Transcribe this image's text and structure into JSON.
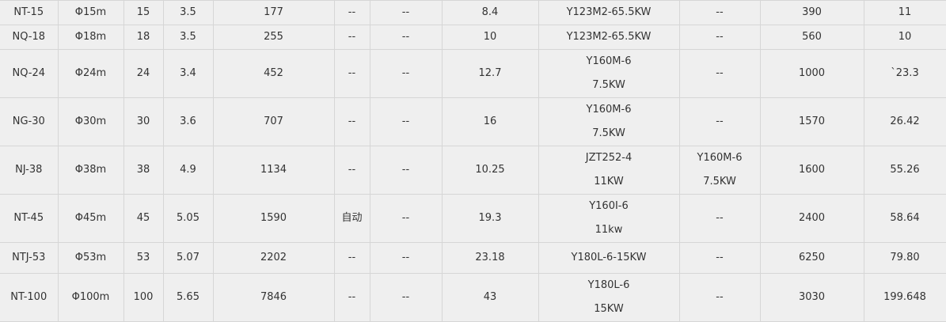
{
  "table": {
    "rows": [
      [
        "NT-15",
        "Φ15m",
        "15",
        "3.5",
        "177",
        "--",
        "--",
        "8.4",
        [
          "Y123M2-65.5KW"
        ],
        [
          "--"
        ],
        "390",
        "11"
      ],
      [
        "NQ-18",
        "Φ18m",
        "18",
        "3.5",
        "255",
        "--",
        "--",
        "10",
        [
          "Y123M2-65.5KW"
        ],
        [
          "--"
        ],
        "560",
        "10"
      ],
      [
        "NQ-24",
        "Φ24m",
        "24",
        "3.4",
        "452",
        "--",
        "--",
        "12.7",
        [
          "Y160M-6",
          "7.5KW"
        ],
        [
          "--"
        ],
        "1000",
        "`23.3"
      ],
      [
        "NG-30",
        "Φ30m",
        "30",
        "3.6",
        "707",
        "--",
        "--",
        "16",
        [
          "Y160M-6",
          "7.5KW"
        ],
        [
          "--"
        ],
        "1570",
        "26.42"
      ],
      [
        "NJ-38",
        "Φ38m",
        "38",
        "4.9",
        "1134",
        "--",
        "--",
        "10.25",
        [
          "JZT252-4",
          "11KW"
        ],
        [
          "Y160M-6",
          "7.5KW"
        ],
        "1600",
        "55.26"
      ],
      [
        "NT-45",
        "Φ45m",
        "45",
        "5.05",
        "1590",
        "自动",
        "--",
        "19.3",
        [
          "Y160I-6",
          "11kw"
        ],
        [
          "--"
        ],
        "2400",
        "58.64"
      ],
      [
        "NTJ-53",
        "Φ53m",
        "53",
        "5.07",
        "2202",
        "--",
        "--",
        "23.18",
        [
          "Y180L-6-15KW"
        ],
        [
          "--"
        ],
        "6250",
        "79.80"
      ],
      [
        "NT-100",
        "Φ100m",
        "100",
        "5.65",
        "7846",
        "--",
        "--",
        "43",
        [
          "Y180L-6",
          "15KW"
        ],
        [
          "--"
        ],
        "3030",
        "199.648"
      ]
    ]
  }
}
